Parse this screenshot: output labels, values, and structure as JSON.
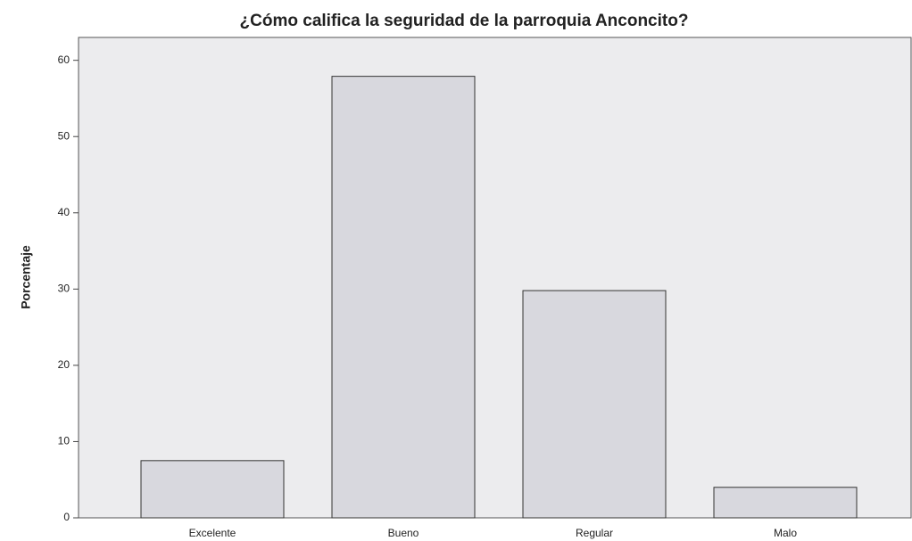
{
  "chart_data": {
    "type": "bar",
    "title": "¿Cómo califica la seguridad de la parroquia Anconcito?",
    "y_label": "Porcentaje",
    "categories": [
      "Excelente",
      "Bueno",
      "Regular",
      "Malo"
    ],
    "values": [
      7.5,
      57.9,
      29.8,
      4.0
    ],
    "color": "#d8d8de",
    "ylim": [
      0,
      63
    ],
    "yticks": [
      0,
      10,
      20,
      30,
      40,
      50,
      60
    ],
    "grid": false
  }
}
